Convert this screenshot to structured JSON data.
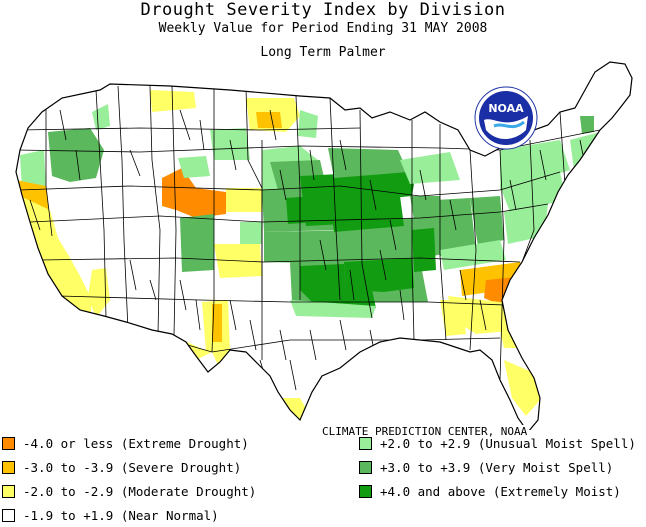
{
  "title": "Drought Severity Index by Division",
  "subtitle": "Weekly Value for Period Ending 31 MAY 2008",
  "index_name": "Long Term Palmer",
  "credit": "CLIMATE PREDICTION CENTER, NOAA",
  "logo_text": "NOAA",
  "colors": {
    "extreme_drought": "#ff8c00",
    "severe_drought": "#ffc200",
    "moderate_drought": "#ffff66",
    "near_normal": "#ffffff",
    "unusual_moist": "#99ee99",
    "very_moist": "#5cb85c",
    "extremely_moist": "#129c12"
  },
  "legend": {
    "left": [
      {
        "key": "extreme_drought",
        "label": "-4.0 or less (Extreme Drought)"
      },
      {
        "key": "severe_drought",
        "label": "-3.0 to -3.9 (Severe Drought)"
      },
      {
        "key": "moderate_drought",
        "label": "-2.0 to -2.9 (Moderate Drought)"
      },
      {
        "key": "near_normal",
        "label": "-1.9 to +1.9 (Near Normal)"
      }
    ],
    "right": [
      {
        "key": "unusual_moist",
        "label": "+2.0 to +2.9 (Unusual Moist Spell)"
      },
      {
        "key": "very_moist",
        "label": "+3.0 to +3.9 (Very Moist Spell)"
      },
      {
        "key": "extremely_moist",
        "label": "+4.0 and above (Extremely Moist)"
      }
    ]
  }
}
